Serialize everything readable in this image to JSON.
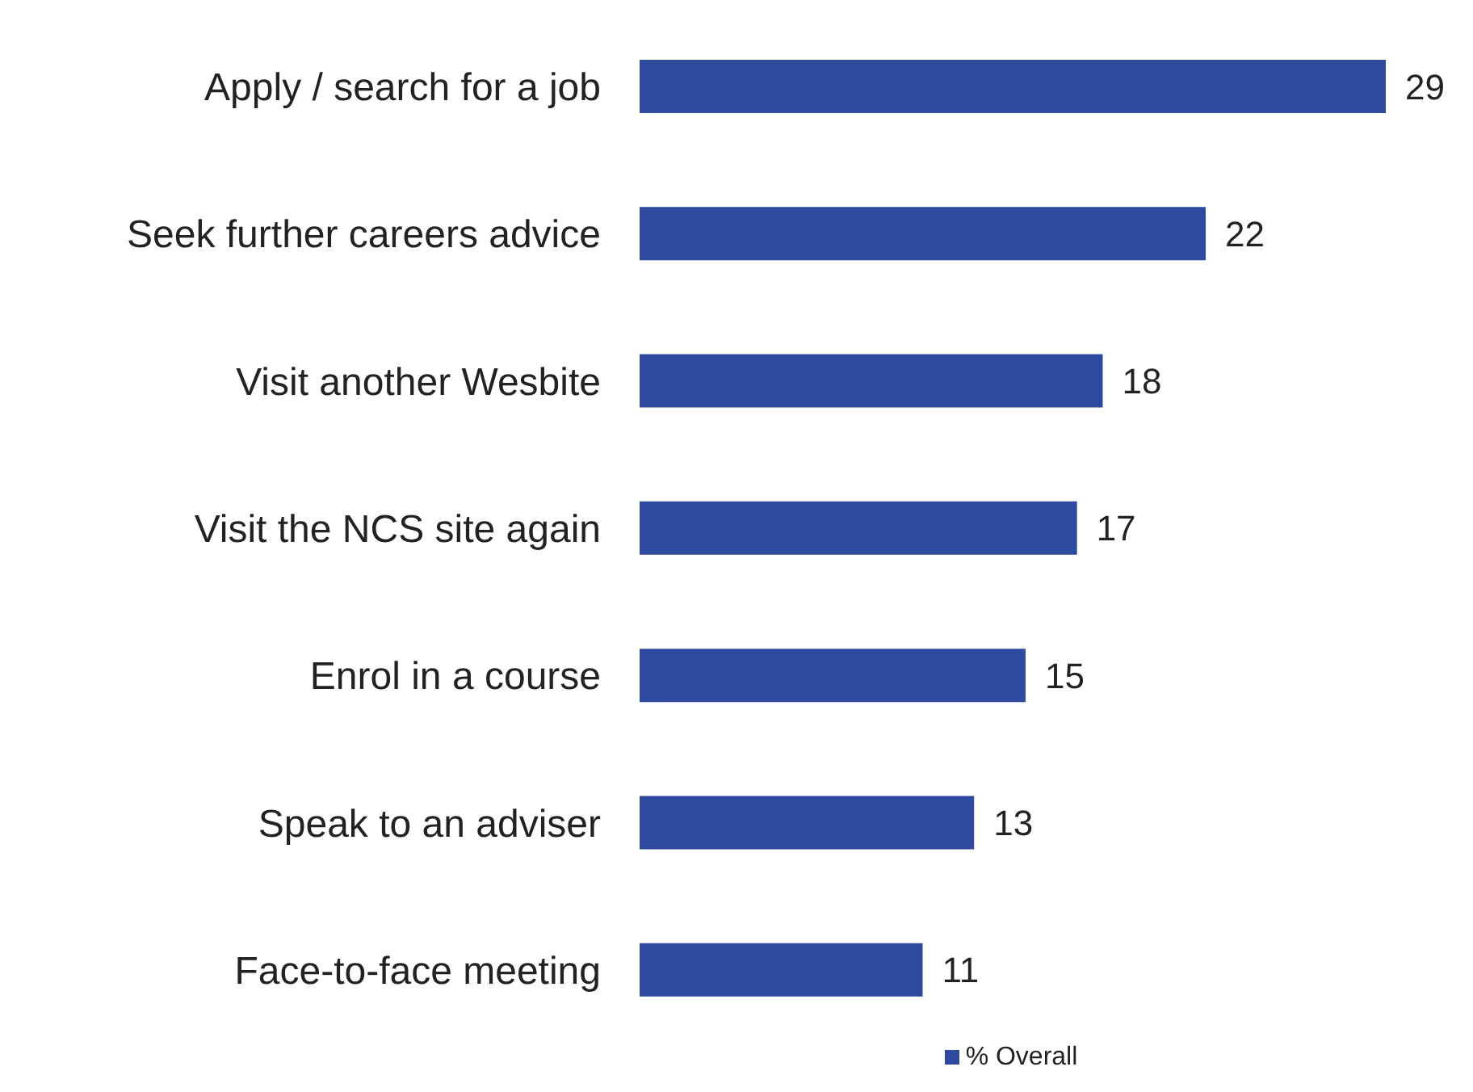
{
  "chart_data": {
    "type": "bar",
    "orientation": "horizontal",
    "categories": [
      "Apply / search for a job",
      "Seek further careers advice",
      "Visit another Wesbite",
      "Visit the NCS site again",
      "Enrol in a course",
      "Speak to an adviser",
      "Face-to-face meeting"
    ],
    "series": [
      {
        "name": "% Overall",
        "color": "#2e4a9e",
        "values": [
          29,
          22,
          18,
          17,
          15,
          13,
          11
        ]
      }
    ],
    "data_labels": true,
    "legend": "bottom",
    "grid": false
  }
}
